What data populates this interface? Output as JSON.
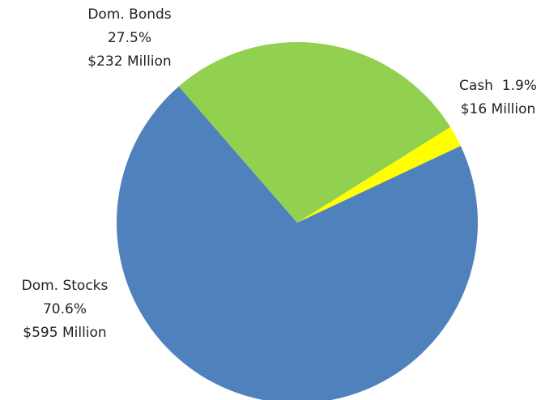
{
  "chart_data": {
    "type": "pie",
    "title": "",
    "slices": [
      {
        "label": "Cash",
        "percent": 1.9,
        "amount": "$16 Million",
        "percent_text": "1.9%",
        "color": "#ffff00"
      },
      {
        "label": "Dom. Stocks",
        "percent": 70.6,
        "amount": "$595 Million",
        "percent_text": "70.6%",
        "color": "#4f81bd"
      },
      {
        "label": "Dom. Bonds",
        "percent": 27.5,
        "amount": "$232 Million",
        "percent_text": "27.5%",
        "color": "#92d050"
      }
    ],
    "start_angle_deg": 58,
    "direction": "clockwise",
    "legend": "none"
  }
}
